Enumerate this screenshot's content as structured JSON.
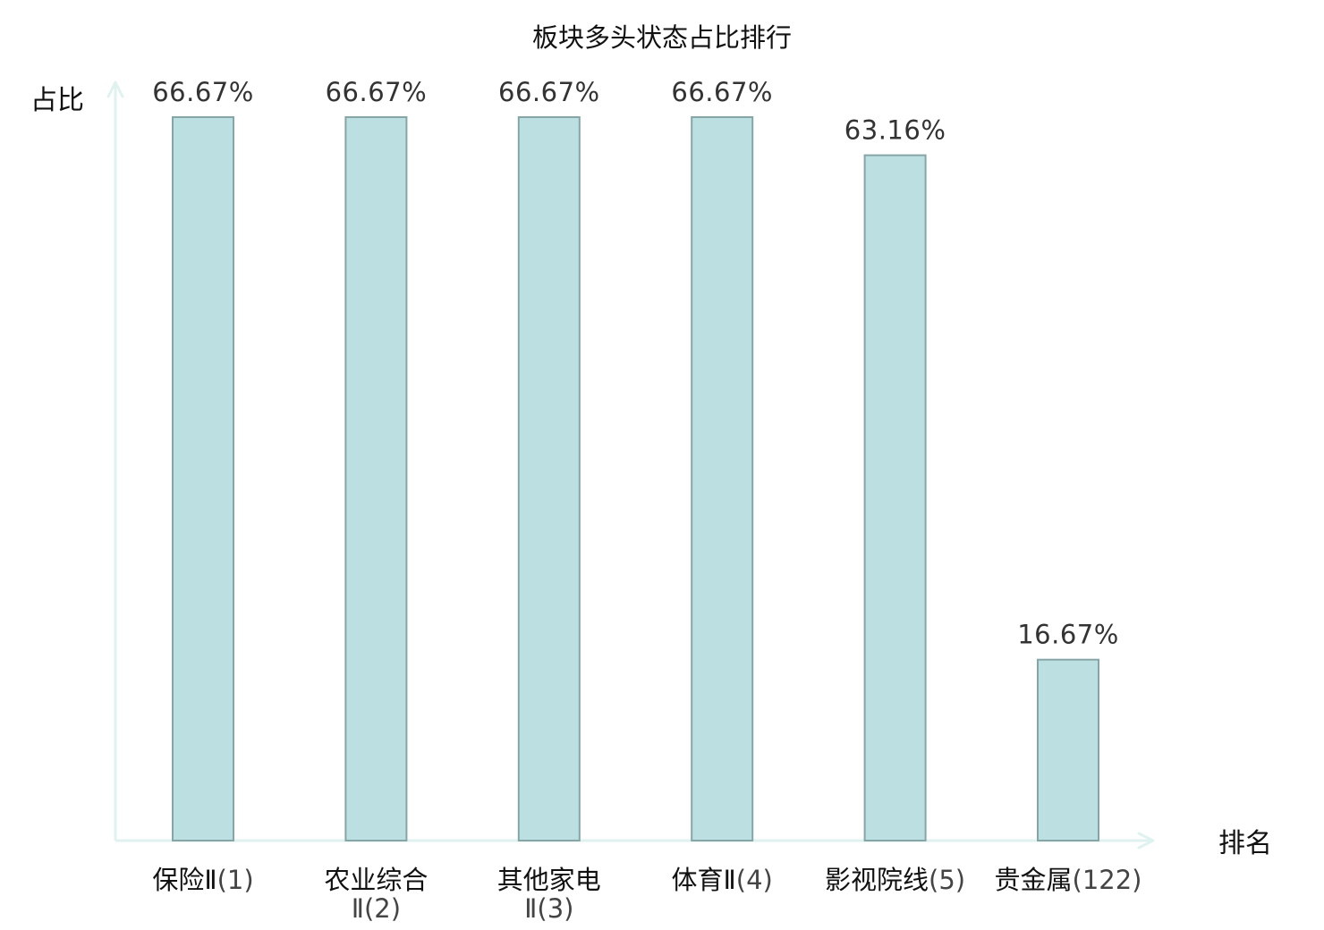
{
  "chart_data": {
    "type": "bar",
    "title": "板块多头状态占比排行",
    "ylabel": "占比",
    "xlabel": "排名",
    "ylim": [
      0,
      70
    ],
    "grid": false,
    "categories": [
      {
        "name": "保险Ⅱ",
        "rank": "(1)",
        "highlight": false
      },
      {
        "name": "农业综合",
        "name_line2": "Ⅱ",
        "rank": "(2)",
        "highlight": false
      },
      {
        "name": "其他家电",
        "name_line2": "Ⅱ",
        "rank": "(3)",
        "highlight": false
      },
      {
        "name": "体育Ⅱ",
        "rank": "(4)",
        "highlight": false
      },
      {
        "name": "影视院线",
        "rank": "(5)",
        "highlight": false
      },
      {
        "name": "贵金属",
        "rank": "(122)",
        "highlight": true
      }
    ],
    "values": [
      66.67,
      66.67,
      66.67,
      66.67,
      63.16,
      16.67
    ],
    "value_labels": [
      "66.67%",
      "66.67%",
      "66.67%",
      "66.67%",
      "63.16%",
      "16.67%"
    ]
  },
  "colors": {
    "bar_fill": "#bce0e2",
    "bar_stroke": "#86a5a6",
    "axis": "#e0f2ef",
    "highlight_text": "#e8141e"
  }
}
